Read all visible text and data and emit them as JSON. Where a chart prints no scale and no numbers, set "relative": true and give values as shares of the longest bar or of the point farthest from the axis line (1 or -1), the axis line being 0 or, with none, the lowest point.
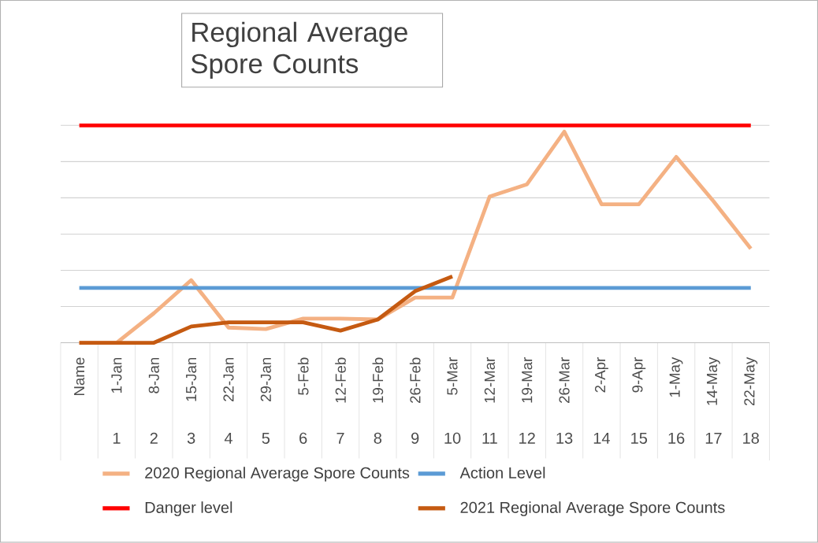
{
  "chart_data": {
    "type": "line",
    "title": "Regional Average Spore Counts",
    "relative": true,
    "grid": "y",
    "legend": "bottom",
    "categories": [
      "Name",
      "1-Jan",
      "8-Jan",
      "15-Jan",
      "22-Jan",
      "29-Jan",
      "5-Feb",
      "12-Feb",
      "19-Feb",
      "26-Feb",
      "5-Mar",
      "12-Mar",
      "19-Mar",
      "26-Mar",
      "2-Apr",
      "9-Apr",
      "1-May",
      "14-May",
      "22-May"
    ],
    "annotations": [
      "1",
      "2",
      "3",
      "4",
      "5",
      "6",
      "7",
      "8",
      "9",
      "10",
      "11",
      "12",
      "13",
      "14",
      "15",
      "16",
      "17",
      "18"
    ],
    "series": [
      {
        "name": "2020 Regional Average Spore Counts",
        "color": "#f4b183",
        "values": [
          0,
          0,
          0.136,
          0.288,
          0.07,
          0.063,
          0.111,
          0.111,
          0.107,
          0.208,
          0.208,
          0.673,
          0.729,
          0.971,
          0.637,
          0.637,
          0.855,
          0.651,
          0.433
        ]
      },
      {
        "name": "Action Level",
        "color": "#5b9bd5",
        "values": [
          0.252,
          0.252,
          0.252,
          0.252,
          0.252,
          0.252,
          0.252,
          0.252,
          0.252,
          0.252,
          0.252,
          0.252,
          0.252,
          0.252,
          0.252,
          0.252,
          0.252,
          0.252,
          0.252
        ]
      },
      {
        "name": "Danger level",
        "color": "#ff0000",
        "values": [
          1,
          1,
          1,
          1,
          1,
          1,
          1,
          1,
          1,
          1,
          1,
          1,
          1,
          1,
          1,
          1,
          1,
          1,
          1
        ]
      },
      {
        "name": "2021 Regional Average Spore Counts",
        "color": "#c55a11",
        "values": [
          0,
          0,
          0,
          0.075,
          0.094,
          0.094,
          0.094,
          0.056,
          0.107,
          0.237,
          0.305,
          null,
          null,
          null,
          null,
          null,
          null,
          null,
          null
        ]
      }
    ]
  }
}
